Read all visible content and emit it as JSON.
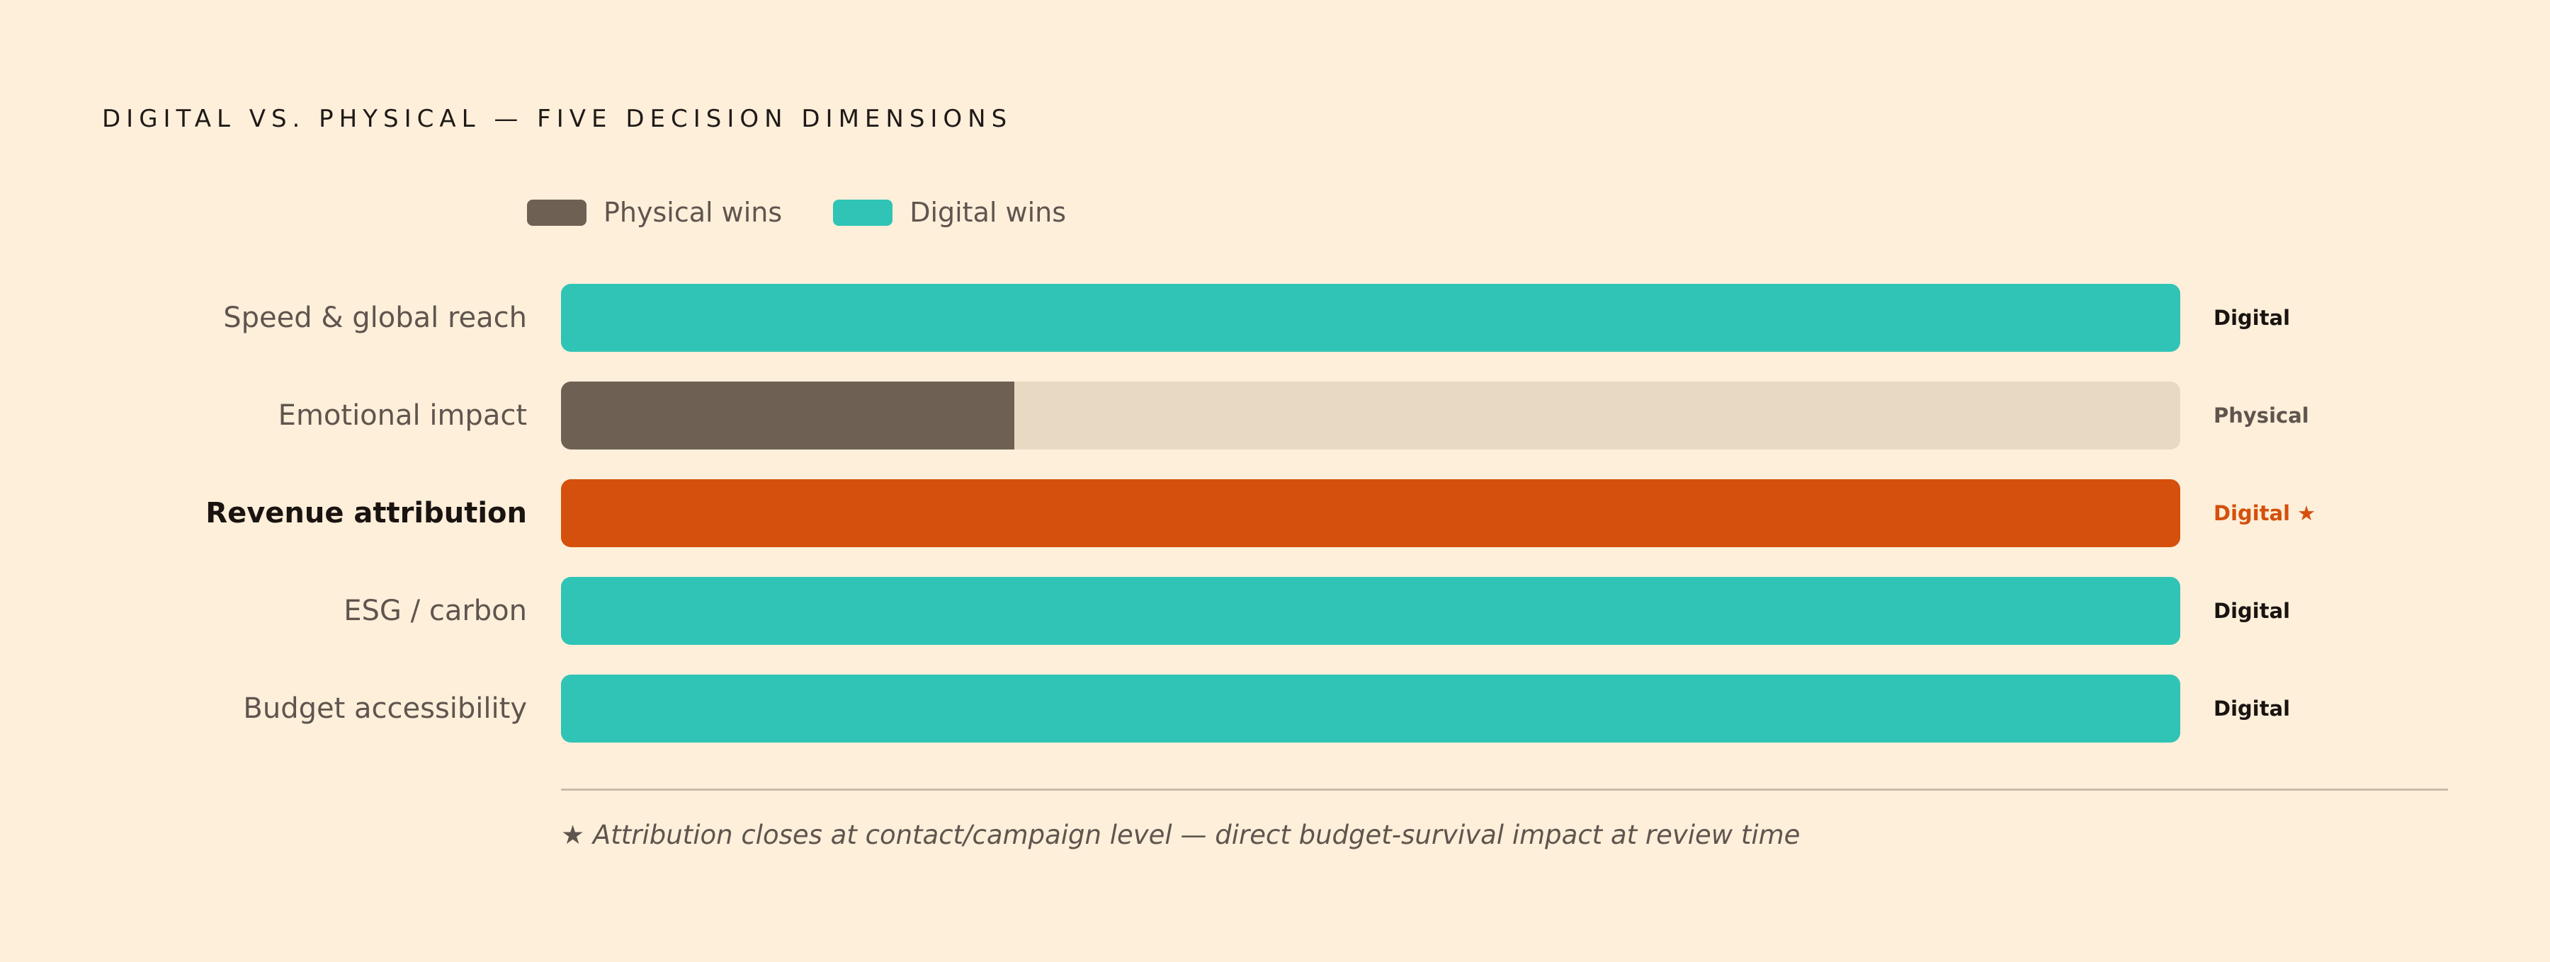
{
  "title": "DIGITAL VS. PHYSICAL — FIVE DECISION DIMENSIONS",
  "colors": {
    "physical": "#6E6153",
    "digital": "#2FC4B5",
    "highlight": "#D4500C",
    "track": "#E8D9C3",
    "text_dark": "#1A1411",
    "text_muted": "#5F554E"
  },
  "legend": [
    {
      "label": "Physical wins",
      "color": "#6E6153"
    },
    {
      "label": "Digital wins",
      "color": "#2FC4B5"
    }
  ],
  "chart_data": {
    "type": "bar",
    "orientation": "horizontal",
    "categories": [
      "Speed & global reach",
      "Emotional impact",
      "Revenue attribution",
      "ESG / carbon",
      "Budget accessibility"
    ],
    "values": [
      1.0,
      0.28,
      1.0,
      1.0,
      1.0
    ],
    "winners": [
      "Digital",
      "Physical",
      "Digital ★",
      "Digital",
      "Digital"
    ],
    "winner_side": [
      "digital",
      "physical",
      "highlight",
      "digital",
      "digital"
    ],
    "highlighted_category": "Revenue attribution",
    "legend_placement": "top-left",
    "grid": false,
    "xlim": [
      0,
      1
    ]
  },
  "footnote": "★ Attribution closes at contact/campaign level — direct budget-survival impact at review time"
}
